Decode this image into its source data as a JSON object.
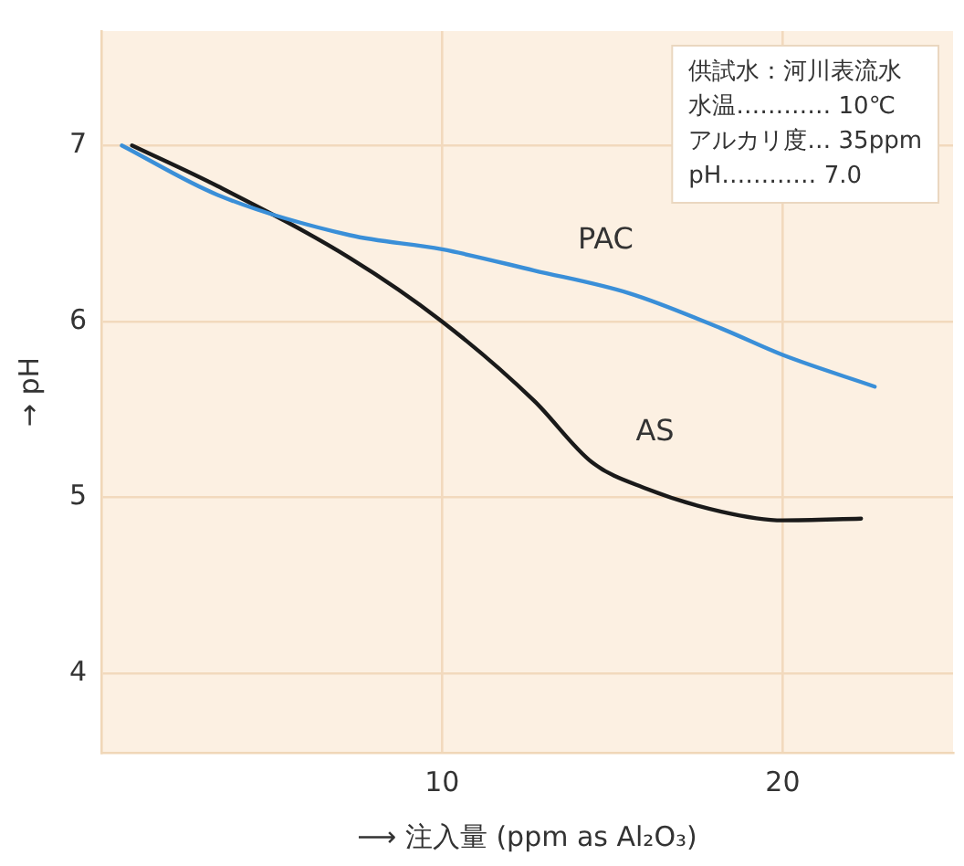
{
  "chart_data": {
    "type": "line",
    "xlabel": "⟶ 注入量 (ppm as Al₂O₃)",
    "ylabel": "→ pH",
    "xlim": [
      0,
      25
    ],
    "ylim": [
      3.55,
      7.65
    ],
    "xticks": [
      10,
      20
    ],
    "yticks": [
      4,
      5,
      6,
      7
    ],
    "grid": true,
    "legend": false,
    "marker": "none",
    "line_style": "solid",
    "series": [
      {
        "name": "PAC",
        "color": "#3a8fd8",
        "x": [
          0.6,
          3.4,
          7.3,
          10,
          12.7,
          15.5,
          18.2,
          20,
          22.7
        ],
        "values": [
          7.0,
          6.72,
          6.49,
          6.41,
          6.29,
          6.16,
          5.96,
          5.81,
          5.63
        ]
      },
      {
        "name": "AS",
        "color": "#1a1a1a",
        "x": [
          0.9,
          3.4,
          7.3,
          10,
          12.7,
          14.4,
          16,
          18.2,
          20,
          22.3
        ],
        "values": [
          7.0,
          6.77,
          6.36,
          6.0,
          5.55,
          5.2,
          5.05,
          4.92,
          4.87,
          4.88
        ]
      }
    ],
    "annotations": [
      "供試水：河川表流水",
      "水温………… 10℃",
      "アルカリ度… 35ppm",
      "pH………… 7.0"
    ]
  }
}
